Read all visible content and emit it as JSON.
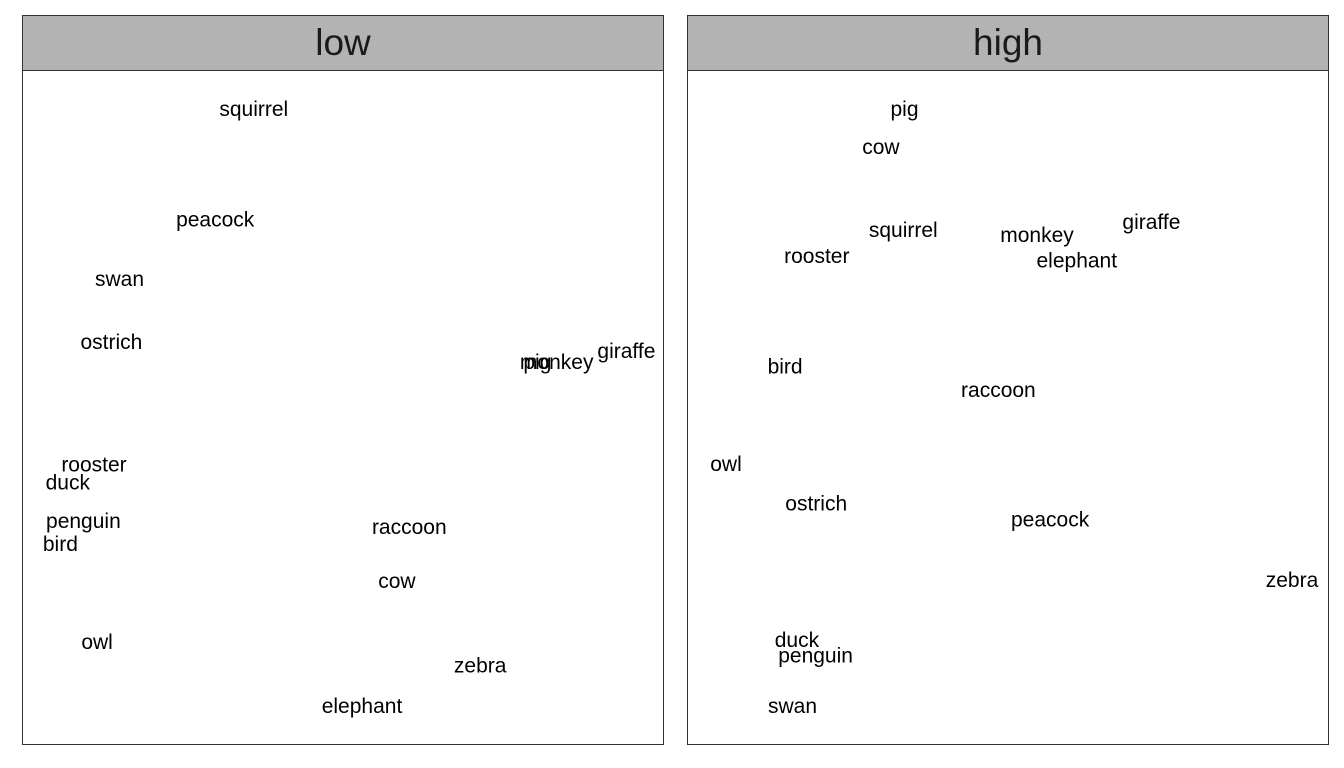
{
  "chart_data": {
    "type": "scatter",
    "mark": "text-labels",
    "facet_variable_values": [
      "low",
      "high"
    ],
    "grid": false,
    "panels": [
      {
        "strip_label": "low",
        "xlim": [
          0,
          1
        ],
        "ylim": [
          0,
          1
        ],
        "points": [
          {
            "label": "squirrel",
            "x": 0.355,
            "y": 0.955
          },
          {
            "label": "peacock",
            "x": 0.293,
            "y": 0.786
          },
          {
            "label": "swan",
            "x": 0.139,
            "y": 0.695
          },
          {
            "label": "ostrich",
            "x": 0.126,
            "y": 0.599
          },
          {
            "label": "pig",
            "x": 0.811,
            "y": 0.568
          },
          {
            "label": "monkey",
            "x": 0.842,
            "y": 0.568
          },
          {
            "label": "giraffe",
            "x": 0.954,
            "y": 0.585
          },
          {
            "label": "rooster",
            "x": 0.098,
            "y": 0.411
          },
          {
            "label": "duck",
            "x": 0.056,
            "y": 0.384
          },
          {
            "label": "penguin",
            "x": 0.081,
            "y": 0.325
          },
          {
            "label": "bird",
            "x": 0.044,
            "y": 0.29
          },
          {
            "label": "raccoon",
            "x": 0.605,
            "y": 0.316
          },
          {
            "label": "cow",
            "x": 0.585,
            "y": 0.233
          },
          {
            "label": "owl",
            "x": 0.103,
            "y": 0.14
          },
          {
            "label": "zebra",
            "x": 0.719,
            "y": 0.104
          },
          {
            "label": "elephant",
            "x": 0.529,
            "y": 0.042
          }
        ]
      },
      {
        "strip_label": "high",
        "xlim": [
          0,
          1
        ],
        "ylim": [
          0,
          1
        ],
        "points": [
          {
            "label": "pig",
            "x": 0.332,
            "y": 0.955
          },
          {
            "label": "cow",
            "x": 0.294,
            "y": 0.897
          },
          {
            "label": "squirrel",
            "x": 0.33,
            "y": 0.77
          },
          {
            "label": "monkey",
            "x": 0.545,
            "y": 0.762
          },
          {
            "label": "giraffe",
            "x": 0.729,
            "y": 0.782
          },
          {
            "label": "rooster",
            "x": 0.191,
            "y": 0.73
          },
          {
            "label": "elephant",
            "x": 0.609,
            "y": 0.723
          },
          {
            "label": "bird",
            "x": 0.14,
            "y": 0.561
          },
          {
            "label": "raccoon",
            "x": 0.483,
            "y": 0.525
          },
          {
            "label": "owl",
            "x": 0.045,
            "y": 0.412
          },
          {
            "label": "ostrich",
            "x": 0.19,
            "y": 0.352
          },
          {
            "label": "peacock",
            "x": 0.566,
            "y": 0.327
          },
          {
            "label": "zebra",
            "x": 0.955,
            "y": 0.235
          },
          {
            "label": "duck",
            "x": 0.159,
            "y": 0.143
          },
          {
            "label": "penguin",
            "x": 0.189,
            "y": 0.119
          },
          {
            "label": "swan",
            "x": 0.152,
            "y": 0.042
          }
        ]
      }
    ]
  }
}
